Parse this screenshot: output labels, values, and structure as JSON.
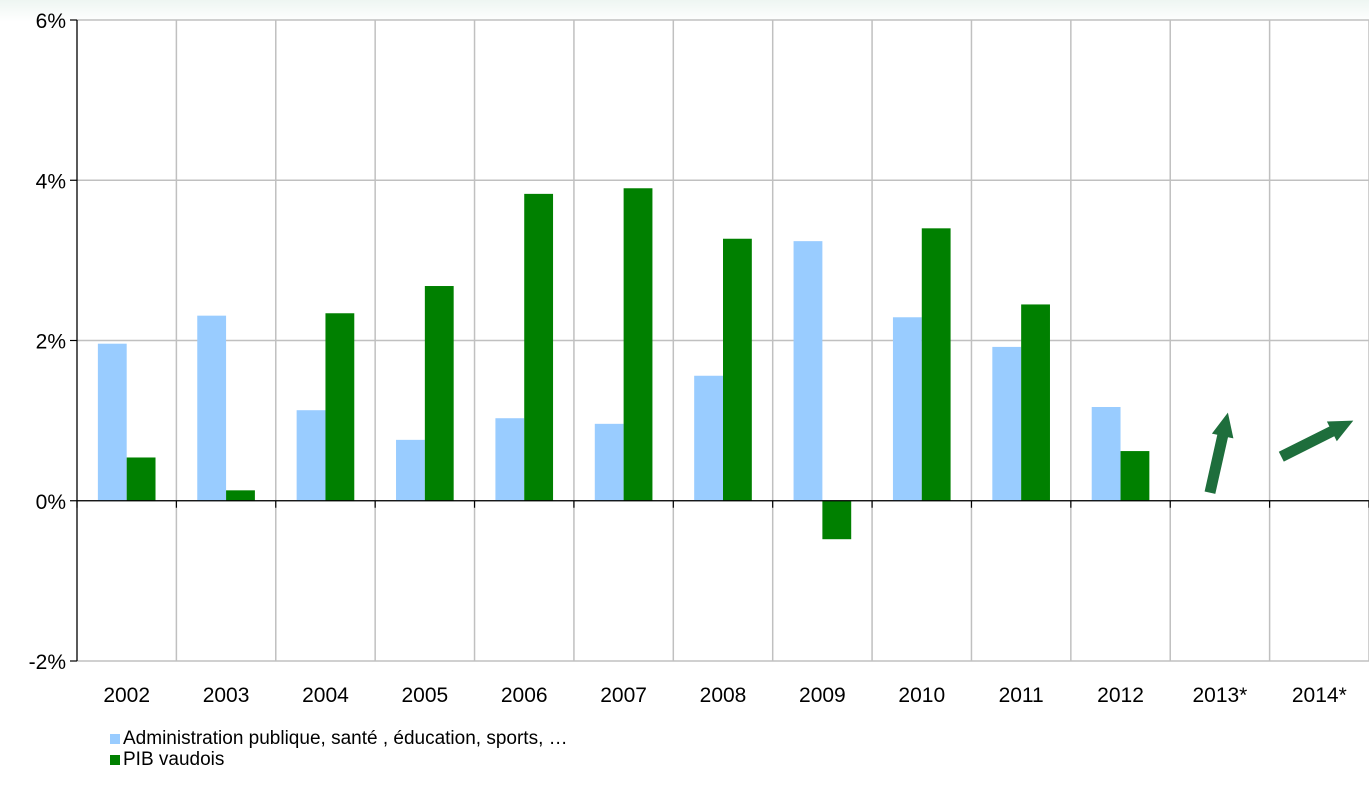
{
  "chart_data": {
    "type": "bar",
    "categories": [
      "2002",
      "2003",
      "2004",
      "2005",
      "2006",
      "2007",
      "2008",
      "2009",
      "2010",
      "2011",
      "2012",
      "2013*",
      "2014*"
    ],
    "series": [
      {
        "name": "Administration publique, santé , éducation, sports, …",
        "color": "#99ccff",
        "values": [
          1.96,
          2.31,
          1.13,
          0.76,
          1.03,
          0.96,
          1.56,
          3.24,
          2.29,
          1.92,
          1.17,
          null,
          null
        ]
      },
      {
        "name": "PIB vaudois",
        "color": "#008000",
        "values": [
          0.54,
          0.13,
          2.34,
          2.68,
          3.83,
          3.9,
          3.27,
          -0.48,
          3.4,
          2.45,
          0.62,
          null,
          null
        ]
      }
    ],
    "forecast_arrows": [
      {
        "category": "2013*",
        "direction": "up",
        "color": "#1e6e3c"
      },
      {
        "category": "2014*",
        "direction": "up-right",
        "color": "#1e6e3c"
      }
    ],
    "y_ticks": [
      "6%",
      "4%",
      "2%",
      "0%",
      "-2%"
    ],
    "ylim": [
      -2,
      6
    ],
    "grid": true,
    "legend_position": "bottom-left"
  }
}
